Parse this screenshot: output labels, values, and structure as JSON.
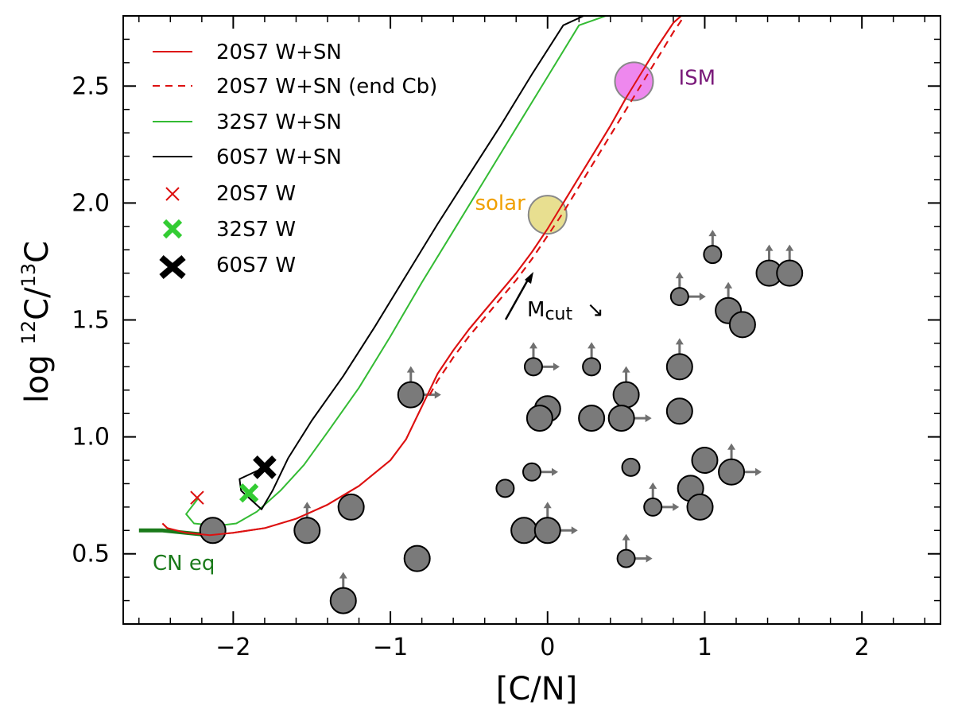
{
  "chart_data": {
    "type": "line",
    "title": "",
    "xlabel": "[C/N]",
    "ylabel_prefix": "log ",
    "ylabel_c12": "C/",
    "ylabel_c13": "C",
    "ylabel_sup12": "12",
    "ylabel_sup13": "13",
    "xlim": [
      -2.7,
      2.5
    ],
    "ylim": [
      0.2,
      2.8
    ],
    "xticks": [
      -2,
      -1,
      0,
      1,
      2
    ],
    "xtick_labels": [
      "−2",
      "−1",
      "0",
      "1",
      "2"
    ],
    "yticks": [
      0.5,
      1.0,
      1.5,
      2.0,
      2.5
    ],
    "ytick_labels": [
      "0.5",
      "1.0",
      "1.5",
      "2.0",
      "2.5"
    ],
    "legend_position": "top-left",
    "series": [
      {
        "name": "20S7 W+SN",
        "color": "#dd1111",
        "dash": "solid",
        "x": [
          -2.45,
          -2.42,
          -2.3,
          -2.15,
          -2.0,
          -1.8,
          -1.6,
          -1.4,
          -1.2,
          -1.0,
          -0.9,
          -0.8,
          -0.7,
          -0.6,
          -0.5,
          -0.4,
          -0.3,
          -0.2,
          -0.1,
          0.0,
          0.1,
          0.2,
          0.3,
          0.4,
          0.5,
          0.6,
          0.7,
          0.8,
          0.85
        ],
        "y": [
          0.63,
          0.61,
          0.59,
          0.58,
          0.59,
          0.61,
          0.65,
          0.71,
          0.79,
          0.9,
          0.99,
          1.13,
          1.27,
          1.37,
          1.46,
          1.54,
          1.62,
          1.7,
          1.79,
          1.89,
          2.0,
          2.11,
          2.22,
          2.33,
          2.45,
          2.56,
          2.67,
          2.77,
          2.8
        ]
      },
      {
        "name": "20S7 W+SN (end Cb)",
        "color": "#dd1111",
        "dash": "dashed",
        "x": [
          -0.75,
          -0.7,
          -0.6,
          -0.5,
          -0.4,
          -0.3,
          -0.2,
          -0.1,
          0.0,
          0.1,
          0.2,
          0.3,
          0.4,
          0.5,
          0.6,
          0.7,
          0.8,
          0.87
        ],
        "y": [
          1.18,
          1.24,
          1.34,
          1.43,
          1.51,
          1.59,
          1.67,
          1.76,
          1.86,
          1.96,
          2.07,
          2.18,
          2.29,
          2.4,
          2.51,
          2.62,
          2.73,
          2.8
        ]
      },
      {
        "name": "32S7 W+SN",
        "color": "#33bb33",
        "dash": "solid",
        "x": [
          -2.22,
          -2.3,
          -2.25,
          -2.1,
          -1.98,
          -1.85,
          -1.7,
          -1.55,
          -1.4,
          -1.2,
          -1.0,
          -0.8,
          -0.6,
          -0.4,
          -0.2,
          0.0,
          0.2,
          0.37
        ],
        "y": [
          0.74,
          0.67,
          0.63,
          0.62,
          0.63,
          0.68,
          0.77,
          0.88,
          1.02,
          1.21,
          1.43,
          1.66,
          1.88,
          2.1,
          2.32,
          2.54,
          2.76,
          2.8
        ]
      },
      {
        "name": "60S7 W+SN",
        "color": "#000000",
        "dash": "solid",
        "x": [
          -1.8,
          -1.96,
          -1.95,
          -1.82,
          -1.75,
          -1.65,
          -1.5,
          -1.3,
          -1.1,
          -0.9,
          -0.7,
          -0.5,
          -0.3,
          -0.1,
          0.1,
          0.23
        ],
        "y": [
          0.87,
          0.82,
          0.77,
          0.69,
          0.77,
          0.91,
          1.07,
          1.26,
          1.47,
          1.69,
          1.91,
          2.12,
          2.33,
          2.55,
          2.76,
          2.8
        ]
      },
      {
        "name": "CN eq",
        "color": "#1a7a1a",
        "dash": "solid",
        "x": [
          -2.6,
          -2.45,
          -2.3,
          -2.15
        ],
        "y": [
          0.6,
          0.6,
          0.59,
          0.58
        ]
      }
    ],
    "w_points": [
      {
        "name": "20S7 W",
        "x": -2.23,
        "y": 0.74,
        "color": "#dd1111",
        "size": "small"
      },
      {
        "name": "32S7 W",
        "x": -1.9,
        "y": 0.76,
        "color": "#33cc33",
        "size": "medium"
      },
      {
        "name": "60S7 W",
        "x": -1.8,
        "y": 0.87,
        "color": "#000000",
        "size": "large"
      }
    ],
    "references": [
      {
        "name": "solar",
        "label": "solar",
        "x": 0.0,
        "y": 1.95,
        "fill": "#e8df90",
        "stroke": "#888888",
        "label_color": "#f0a000",
        "label_side": "left"
      },
      {
        "name": "ISM",
        "label": "ISM",
        "x": 0.55,
        "y": 2.52,
        "fill": "#ee88ee",
        "stroke": "#888888",
        "label_color": "#7a1a7a",
        "label_side": "right"
      }
    ],
    "observations": [
      {
        "x": -2.13,
        "y": 0.6,
        "r": "big"
      },
      {
        "x": -1.53,
        "y": 0.6,
        "r": "big",
        "up": true
      },
      {
        "x": -1.25,
        "y": 0.7,
        "r": "big"
      },
      {
        "x": -1.3,
        "y": 0.3,
        "r": "big",
        "up": true
      },
      {
        "x": -0.87,
        "y": 1.18,
        "r": "big",
        "up": true,
        "right": true
      },
      {
        "x": -0.83,
        "y": 0.48,
        "r": "big"
      },
      {
        "x": -0.27,
        "y": 0.78,
        "r": "small"
      },
      {
        "x": -0.15,
        "y": 0.6,
        "r": "big"
      },
      {
        "x": -0.1,
        "y": 0.85,
        "r": "small",
        "right": true
      },
      {
        "x": -0.09,
        "y": 1.3,
        "r": "small",
        "up": true,
        "right": true
      },
      {
        "x": 0.0,
        "y": 1.12,
        "r": "big"
      },
      {
        "x": -0.05,
        "y": 1.08,
        "r": "big"
      },
      {
        "x": 0.0,
        "y": 0.6,
        "r": "big",
        "up": true,
        "right": true
      },
      {
        "x": 0.28,
        "y": 1.08,
        "r": "big"
      },
      {
        "x": 0.28,
        "y": 1.3,
        "r": "small",
        "up": true
      },
      {
        "x": 0.5,
        "y": 1.18,
        "r": "big",
        "up": true
      },
      {
        "x": 0.47,
        "y": 1.08,
        "r": "big",
        "right": true
      },
      {
        "x": 0.53,
        "y": 0.87,
        "r": "small"
      },
      {
        "x": 0.5,
        "y": 0.48,
        "r": "small",
        "up": true,
        "right": true
      },
      {
        "x": 0.67,
        "y": 0.7,
        "r": "small",
        "up": true,
        "right": true
      },
      {
        "x": 0.84,
        "y": 1.3,
        "r": "big",
        "up": true
      },
      {
        "x": 0.84,
        "y": 1.11,
        "r": "big"
      },
      {
        "x": 0.84,
        "y": 1.6,
        "r": "small",
        "up": true,
        "right": true
      },
      {
        "x": 0.91,
        "y": 0.78,
        "r": "big"
      },
      {
        "x": 0.97,
        "y": 0.7,
        "r": "big"
      },
      {
        "x": 1.0,
        "y": 0.9,
        "r": "big"
      },
      {
        "x": 1.05,
        "y": 1.78,
        "r": "small",
        "up": true
      },
      {
        "x": 1.15,
        "y": 1.54,
        "r": "big",
        "up": true
      },
      {
        "x": 1.24,
        "y": 1.48,
        "r": "big"
      },
      {
        "x": 1.17,
        "y": 0.85,
        "r": "big",
        "up": true,
        "right": true
      },
      {
        "x": 1.41,
        "y": 1.7,
        "r": "big",
        "up": true
      },
      {
        "x": 1.54,
        "y": 1.7,
        "r": "big",
        "up": true
      }
    ],
    "annotations": {
      "mcut_main": "M",
      "mcut_sub": "cut",
      "mcut_down_arrow": "↘",
      "cn_eq": "CN eq"
    }
  }
}
